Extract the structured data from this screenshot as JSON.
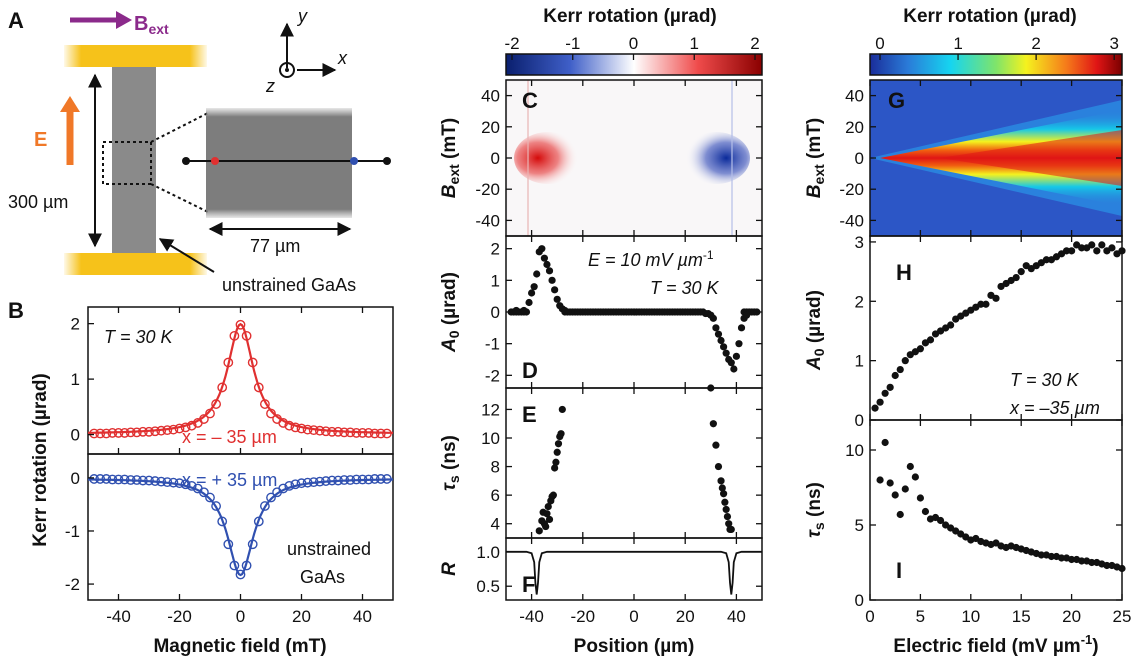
{
  "panel_labels": {
    "A": "A",
    "B": "B",
    "C": "C",
    "D": "D",
    "E": "E",
    "F": "F",
    "G": "G",
    "H": "H",
    "I": "I"
  },
  "colors": {
    "red": "#e03030",
    "blue": "#3050b0",
    "purple": "#8b2a8b",
    "orange": "#f07828",
    "gold": "#f6c21a",
    "gray": "#8a8a8a"
  },
  "schematic": {
    "bext_main": "B",
    "bext_sub": "ext",
    "axis_y": "y",
    "axis_x": "x",
    "axis_z": "z",
    "e_field": "E",
    "length_300": "300 µm",
    "width_77": "77 µm",
    "material": "unstrained GaAs"
  },
  "panel_b": {
    "ylabel": "Kerr rotation (µrad)",
    "xlabel": "Magnetic field (mT)",
    "annot_T": "T = 30 K",
    "annot_red": "x = – 35 µm",
    "annot_blue": "x = + 35 µm",
    "annot_material_1": "unstrained",
    "annot_material_2": "GaAs",
    "x_ticks": [
      "-40",
      "-20",
      "0",
      "20",
      "40"
    ],
    "top_y_ticks": [
      "2",
      "1",
      "0"
    ],
    "bottom_y_ticks": [
      "0",
      "-1",
      "-2"
    ]
  },
  "colorbar_c": {
    "title": "Kerr rotation (µrad)",
    "ticks": [
      "-2",
      "-1",
      "0",
      "1",
      "2"
    ]
  },
  "colorbar_g": {
    "title": "Kerr rotation (µrad)",
    "ticks": [
      "0",
      "1",
      "2",
      "3"
    ]
  },
  "panel_c": {
    "ylabel_main": "B",
    "ylabel_sub": "ext",
    "ylabel_unit": " (mT)",
    "y_ticks": [
      "40",
      "20",
      "0",
      "-20",
      "-40"
    ]
  },
  "panel_d": {
    "ylabel_main": "A",
    "ylabel_sub": "0",
    "ylabel_unit": " (µrad)",
    "annot_E": "E = 10 mV µm",
    "annot_E_sup": "-1",
    "annot_T": "T = 30 K",
    "y_ticks": [
      "2",
      "1",
      "0",
      "-1",
      "-2"
    ]
  },
  "panel_e": {
    "ylabel_main": "τ",
    "ylabel_sub": "s",
    "ylabel_unit": " (ns)",
    "y_ticks": [
      "12",
      "10",
      "8",
      "6",
      "4"
    ]
  },
  "panel_f": {
    "ylabel": "R",
    "y_ticks": [
      "1.0",
      "0.5"
    ],
    "x_ticks": [
      "-40",
      "-20",
      "0",
      "20",
      "40"
    ],
    "xlabel": "Position (µm)"
  },
  "panel_g": {
    "ylabel_main": "B",
    "ylabel_sub": "ext",
    "ylabel_unit": " (mT)",
    "y_ticks": [
      "40",
      "20",
      "0",
      "-20",
      "-40"
    ]
  },
  "panel_h": {
    "ylabel_main": "A",
    "ylabel_sub": "0",
    "ylabel_unit": " (µrad)",
    "annot_T": "T = 30 K",
    "annot_x": "x = –35 µm",
    "y_ticks": [
      "3",
      "2",
      "1",
      "0"
    ]
  },
  "panel_i": {
    "ylabel_main": "τ",
    "ylabel_sub": "s",
    "ylabel_unit": " (ns)",
    "y_ticks": [
      "10",
      "5",
      "0"
    ],
    "x_ticks": [
      "0",
      "5",
      "10",
      "15",
      "20",
      "25"
    ],
    "xlabel": "Electric field (mV µm",
    "xlabel_sup": "-1",
    "xlabel_end": ")"
  },
  "chart_data": [
    {
      "type": "scatter",
      "panel": "B-top",
      "series": [
        {
          "name": "x = – 35 µm",
          "x": [
            -48,
            -46,
            -44,
            -42,
            -40,
            -38,
            -36,
            -34,
            -32,
            -30,
            -28,
            -26,
            -24,
            -22,
            -20,
            -18,
            -16,
            -14,
            -12,
            -10,
            -8,
            -6,
            -4,
            -2,
            0,
            2,
            4,
            6,
            8,
            10,
            12,
            14,
            16,
            18,
            20,
            22,
            24,
            26,
            28,
            30,
            32,
            34,
            36,
            38,
            40,
            42,
            44,
            46,
            48
          ],
          "y": [
            0.02,
            0.02,
            0.02,
            0.03,
            0.03,
            0.03,
            0.04,
            0.04,
            0.05,
            0.05,
            0.06,
            0.07,
            0.08,
            0.09,
            0.11,
            0.13,
            0.16,
            0.21,
            0.28,
            0.38,
            0.55,
            0.85,
            1.3,
            1.78,
            1.98,
            1.78,
            1.3,
            0.85,
            0.55,
            0.38,
            0.28,
            0.21,
            0.16,
            0.13,
            0.11,
            0.09,
            0.08,
            0.07,
            0.06,
            0.05,
            0.05,
            0.04,
            0.04,
            0.03,
            0.03,
            0.03,
            0.02,
            0.02,
            0.02
          ]
        }
      ],
      "xlim": [
        -50,
        50
      ],
      "ylim": [
        -0.35,
        2.3
      ]
    },
    {
      "type": "scatter",
      "panel": "B-bottom",
      "series": [
        {
          "name": "x = + 35 µm",
          "x": [
            -48,
            -46,
            -44,
            -42,
            -40,
            -38,
            -36,
            -34,
            -32,
            -30,
            -28,
            -26,
            -24,
            -22,
            -20,
            -18,
            -16,
            -14,
            -12,
            -10,
            -8,
            -6,
            -4,
            -2,
            0,
            2,
            4,
            6,
            8,
            10,
            12,
            14,
            16,
            18,
            20,
            22,
            24,
            26,
            28,
            30,
            32,
            34,
            36,
            38,
            40,
            42,
            44,
            46,
            48
          ],
          "y": [
            -0.02,
            -0.02,
            -0.02,
            -0.03,
            -0.03,
            -0.03,
            -0.04,
            -0.04,
            -0.05,
            -0.05,
            -0.06,
            -0.07,
            -0.08,
            -0.09,
            -0.1,
            -0.12,
            -0.15,
            -0.2,
            -0.27,
            -0.37,
            -0.53,
            -0.82,
            -1.25,
            -1.65,
            -1.82,
            -1.65,
            -1.25,
            -0.82,
            -0.53,
            -0.37,
            -0.27,
            -0.2,
            -0.15,
            -0.12,
            -0.1,
            -0.09,
            -0.08,
            -0.07,
            -0.06,
            -0.05,
            -0.05,
            -0.04,
            -0.04,
            -0.03,
            -0.03,
            -0.03,
            -0.02,
            -0.02,
            -0.02
          ]
        }
      ],
      "xlim": [
        -50,
        50
      ],
      "ylim": [
        -2.3,
        0.45
      ]
    },
    {
      "type": "scatter",
      "panel": "D",
      "x": [
        -48,
        -47,
        -46,
        -45,
        -44,
        -43,
        -42,
        -41,
        -40,
        -39,
        -38,
        -37,
        -36,
        -35,
        -34,
        -33,
        -32,
        -31,
        -30,
        -29,
        -28,
        -27,
        -26,
        -25,
        -24,
        -22,
        -20,
        -18,
        -16,
        -14,
        -12,
        -10,
        -8,
        -6,
        -4,
        -2,
        0,
        2,
        4,
        6,
        8,
        10,
        12,
        14,
        16,
        18,
        20,
        22,
        24,
        25,
        26,
        27,
        28,
        29,
        30,
        31,
        32,
        33,
        34,
        35,
        36,
        37,
        38,
        39,
        40,
        41,
        42,
        43,
        44,
        45,
        46,
        47,
        48
      ],
      "y": [
        0,
        0,
        0.05,
        0,
        0,
        0.05,
        0,
        0.3,
        0.6,
        0.8,
        1.2,
        1.9,
        2.0,
        1.7,
        1.5,
        1.3,
        1.0,
        0.7,
        0.4,
        0.2,
        0.1,
        0.05,
        0,
        0,
        0,
        0,
        0,
        0,
        0,
        0,
        0,
        0,
        0,
        0,
        0,
        0,
        0,
        0,
        0,
        0,
        0,
        0,
        0,
        0,
        0,
        0,
        0,
        0,
        0,
        0,
        0,
        0,
        -0.05,
        -0.05,
        -0.1,
        -0.2,
        -0.5,
        -0.7,
        -0.9,
        -1.1,
        -1.3,
        -1.5,
        -1.6,
        -1.8,
        -1.4,
        -1.0,
        -0.5,
        -0.2,
        -0.1,
        0,
        0,
        0,
        0
      ],
      "xlim": [
        -50,
        50
      ],
      "ylim": [
        -2.4,
        2.4
      ]
    },
    {
      "type": "scatter",
      "panel": "E",
      "x": [
        -37,
        -36,
        -35.5,
        -35,
        -34.5,
        -34,
        -33.5,
        -33,
        -32.5,
        -32,
        -31.5,
        -31,
        -30.5,
        -30,
        -29.5,
        -29,
        -28.5,
        -28,
        30,
        31,
        32,
        33,
        34,
        34.5,
        35,
        35.5,
        36,
        36.5,
        37,
        37.5,
        38
      ],
      "y": [
        3.5,
        4.2,
        4.8,
        4.0,
        3.8,
        4.7,
        5.2,
        4.3,
        5.6,
        5.9,
        6.0,
        7.9,
        8.3,
        9.0,
        9.6,
        10.1,
        10.3,
        12.0,
        13.5,
        11.0,
        9.5,
        8.0,
        7.0,
        6.5,
        6.1,
        5.5,
        5.0,
        4.5,
        4.0,
        3.6,
        3.6
      ],
      "xlim": [
        -50,
        50
      ],
      "ylim": [
        3,
        13.5
      ]
    },
    {
      "type": "line",
      "panel": "F",
      "x": [
        -50,
        -42,
        -40,
        -39,
        -38.5,
        -38,
        -37.5,
        -37,
        -36,
        -34,
        -30,
        0,
        30,
        34,
        36,
        37,
        37.5,
        38,
        38.5,
        39,
        40,
        42,
        50
      ],
      "y": [
        1.0,
        1.0,
        0.98,
        0.85,
        0.55,
        0.38,
        0.55,
        0.85,
        0.98,
        1.0,
        1.0,
        1.0,
        1.0,
        1.0,
        0.98,
        0.85,
        0.55,
        0.38,
        0.55,
        0.85,
        0.98,
        1.0,
        1.0
      ],
      "xlim": [
        -50,
        50
      ],
      "ylim": [
        0.3,
        1.2
      ]
    },
    {
      "type": "scatter",
      "panel": "H",
      "x": [
        0.5,
        1,
        1.5,
        2,
        2.5,
        3,
        3.5,
        4,
        4.5,
        5,
        5.5,
        6,
        6.5,
        7,
        7.5,
        8,
        8.5,
        9,
        9.5,
        10,
        10.5,
        11,
        11.5,
        12,
        12.5,
        13,
        13.5,
        14,
        14.5,
        15,
        15.5,
        16,
        16.5,
        17,
        17.5,
        18,
        18.5,
        19,
        19.5,
        20,
        20.5,
        21,
        21.5,
        22,
        22.5,
        23,
        23.5,
        24,
        24.5,
        25
      ],
      "y": [
        0.2,
        0.3,
        0.45,
        0.55,
        0.75,
        0.85,
        1.0,
        1.1,
        1.15,
        1.2,
        1.3,
        1.35,
        1.45,
        1.5,
        1.55,
        1.6,
        1.7,
        1.75,
        1.8,
        1.85,
        1.9,
        1.95,
        1.95,
        2.1,
        2.05,
        2.25,
        2.3,
        2.35,
        2.4,
        2.5,
        2.6,
        2.55,
        2.6,
        2.65,
        2.7,
        2.7,
        2.75,
        2.8,
        2.85,
        2.85,
        2.95,
        2.9,
        2.9,
        2.95,
        2.85,
        2.95,
        2.85,
        2.9,
        2.8,
        2.85
      ],
      "xlim": [
        0,
        25
      ],
      "ylim": [
        0,
        3.1
      ]
    },
    {
      "type": "scatter",
      "panel": "I",
      "x": [
        1,
        1.5,
        2,
        2.5,
        3,
        3.5,
        4,
        4.5,
        5,
        5.5,
        6,
        6.5,
        7,
        7.5,
        8,
        8.5,
        9,
        9.5,
        10,
        10.5,
        11,
        11.5,
        12,
        12.5,
        13,
        13.5,
        14,
        14.5,
        15,
        15.5,
        16,
        16.5,
        17,
        17.5,
        18,
        18.5,
        19,
        19.5,
        20,
        20.5,
        21,
        21.5,
        22,
        22.5,
        23,
        23.5,
        24,
        24.5,
        25
      ],
      "y": [
        8.0,
        10.5,
        7.8,
        7.0,
        5.7,
        7.4,
        8.9,
        8.2,
        6.8,
        5.9,
        5.4,
        5.5,
        5.3,
        5.0,
        4.8,
        4.6,
        4.4,
        4.2,
        4.0,
        4.1,
        3.9,
        3.8,
        3.7,
        3.8,
        3.6,
        3.5,
        3.6,
        3.5,
        3.4,
        3.3,
        3.2,
        3.1,
        3.0,
        3.0,
        2.9,
        2.9,
        2.8,
        2.8,
        2.7,
        2.7,
        2.6,
        2.6,
        2.5,
        2.5,
        2.4,
        2.3,
        2.3,
        2.2,
        2.1
      ],
      "xlim": [
        0,
        25
      ],
      "ylim": [
        0,
        12
      ]
    },
    {
      "type": "heatmap",
      "panel": "C",
      "x_range": [
        -50,
        50
      ],
      "y_range": [
        -50,
        50
      ],
      "colorbar": [
        -2,
        2
      ],
      "features": [
        {
          "x": -35,
          "y": 0,
          "value": 2
        },
        {
          "x": 35,
          "y": 0,
          "value": -2
        }
      ]
    },
    {
      "type": "heatmap",
      "panel": "G",
      "x_range": [
        0,
        25
      ],
      "y_range": [
        -50,
        50
      ],
      "colorbar": [
        0,
        3.1
      ],
      "description_peak_value": 3
    }
  ]
}
